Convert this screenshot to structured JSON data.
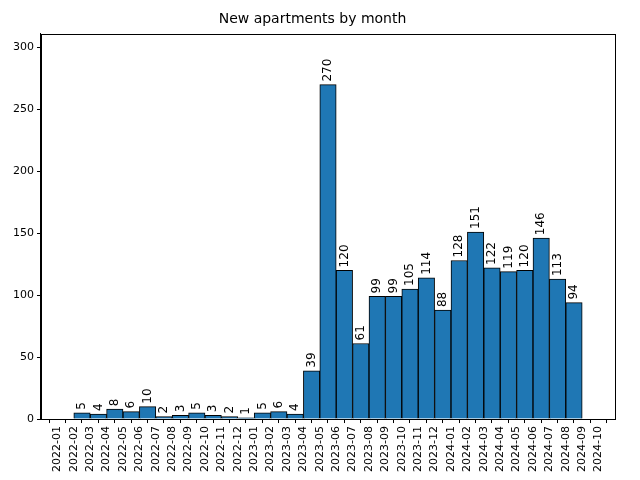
{
  "chart_data": {
    "type": "bar",
    "title": "New apartments by month",
    "bins": [
      "2022-02",
      "2022-03",
      "2022-04",
      "2022-05",
      "2022-06",
      "2022-07",
      "2022-08",
      "2022-09",
      "2022-10",
      "2022-11",
      "2022-12",
      "2023-01",
      "2023-02",
      "2023-03",
      "2023-04",
      "2023-05",
      "2023-06",
      "2023-07",
      "2023-08",
      "2023-09",
      "2023-10",
      "2023-11",
      "2023-12",
      "2024-01",
      "2024-02",
      "2024-03",
      "2024-04",
      "2024-05",
      "2024-06",
      "2024-07",
      "2024-08",
      "2024-09"
    ],
    "values": [
      5,
      4,
      8,
      6,
      10,
      2,
      3,
      5,
      3,
      2,
      1,
      5,
      6,
      4,
      39,
      270,
      120,
      61,
      99,
      99,
      105,
      114,
      88,
      128,
      151,
      122,
      119,
      120,
      146,
      113,
      94
    ],
    "color": "#1f77b4",
    "xlim": [
      "2021-12",
      "2024-11"
    ],
    "xticks": [
      "2022-01",
      "2022-02",
      "2022-03",
      "2022-04",
      "2022-05",
      "2022-06",
      "2022-07",
      "2022-08",
      "2022-09",
      "2022-10",
      "2022-11",
      "2022-12",
      "2023-01",
      "2023-02",
      "2023-03",
      "2023-04",
      "2023-05",
      "2023-06",
      "2023-07",
      "2023-08",
      "2023-09",
      "2023-10",
      "2023-11",
      "2023-12",
      "2024-01",
      "2024-02",
      "2024-03",
      "2024-04",
      "2024-05",
      "2024-06",
      "2024-07",
      "2024-08",
      "2024-09",
      "2024-10"
    ],
    "ylim": [
      0,
      311
    ],
    "yticks": [
      0,
      50,
      100,
      150,
      200,
      250,
      300
    ],
    "grid": false,
    "data_labels": true
  }
}
